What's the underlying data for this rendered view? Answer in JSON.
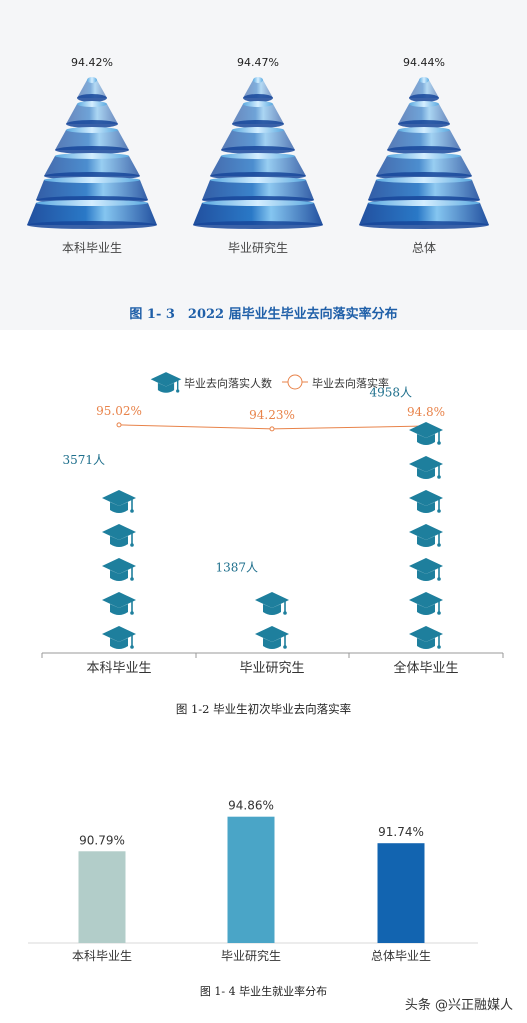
{
  "charts": {
    "fig13": {
      "caption": "图 1- 3　2022 届毕业生毕业去向落实率分布",
      "colors": {
        "dark": "#17479a",
        "mid": "#1f72c4",
        "light": "#8cc8ee"
      }
    },
    "fig12": {
      "caption": "图 1-2  毕业生初次毕业去向落实率",
      "legend": {
        "count_label": "毕业去向落实人数",
        "rate_label": "毕业去向落实率"
      },
      "colors": {
        "icon": "#1e7f9d",
        "rate": "#e8834a",
        "count_text": "#1e6f8c"
      }
    },
    "fig14": {
      "caption": "图 1- 4  毕业生就业率分布",
      "colors": [
        "#b2cdc9",
        "#4aa5c7",
        "#1264b0"
      ]
    }
  },
  "chart_data": [
    {
      "type": "bar",
      "title": "图 1- 3　2022 届毕业生毕业去向落实率分布",
      "categories": [
        "本科毕业生",
        "毕业研究生",
        "总体"
      ],
      "values": [
        94.42,
        94.47,
        94.44
      ],
      "value_labels": [
        "94.42%",
        "94.47%",
        "94.44%"
      ],
      "unit": "%"
    },
    {
      "type": "bar",
      "title": "图 1-2  毕业生初次毕业去向落实率",
      "categories": [
        "本科毕业生",
        "毕业研究生",
        "全体毕业生"
      ],
      "series": [
        {
          "name": "毕业去向落实人数",
          "values": [
            3571,
            1387,
            4958
          ],
          "value_labels": [
            "3571人",
            "1387人",
            "4958人"
          ]
        },
        {
          "name": "毕业去向落实率",
          "values": [
            95.02,
            94.23,
            94.8
          ],
          "value_labels": [
            "95.02%",
            "94.23%",
            "94.8%"
          ]
        }
      ]
    },
    {
      "type": "bar",
      "title": "图 1- 4  毕业生就业率分布",
      "categories": [
        "本科毕业生",
        "毕业研究生",
        "总体毕业生"
      ],
      "values": [
        90.79,
        94.86,
        91.74
      ],
      "value_labels": [
        "90.79%",
        "94.86%",
        "91.74%"
      ],
      "unit": "%"
    }
  ],
  "watermark": "头条 @兴正融媒人"
}
